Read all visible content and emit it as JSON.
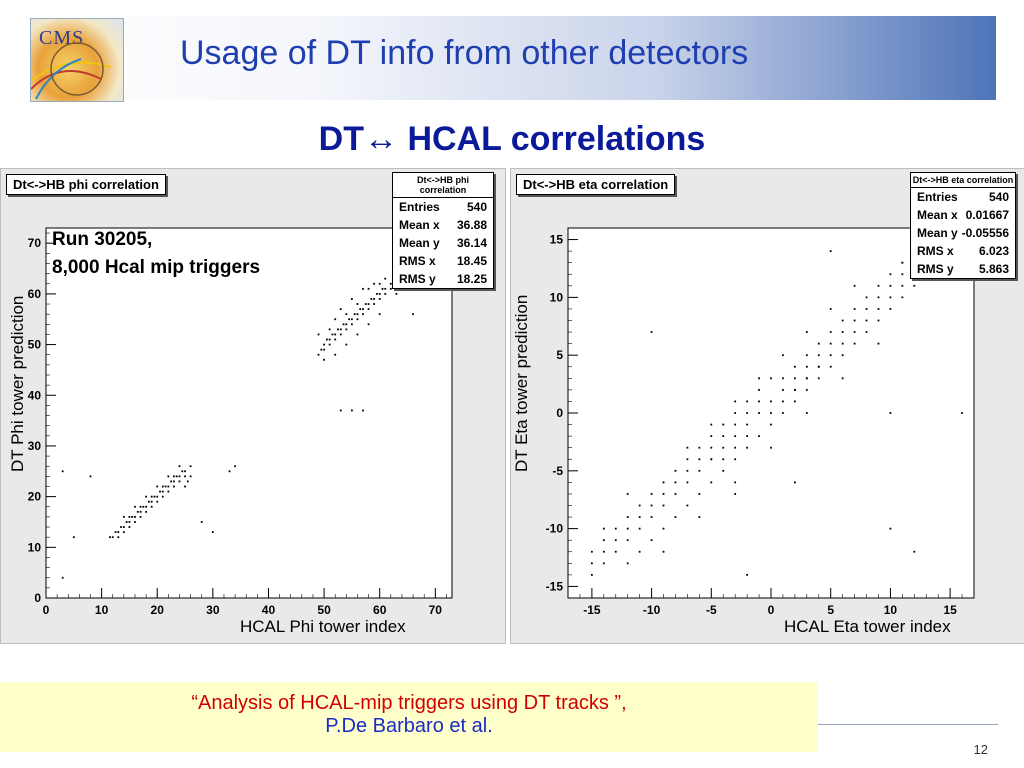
{
  "slide": {
    "title": "Usage of DT  info  from other detectors",
    "subtitle": "DT↔ HCAL correlations",
    "page_number": "12",
    "logo_text": "CMS"
  },
  "annotation": {
    "line1": "Run 30205,",
    "line2": "8,000 Hcal mip triggers"
  },
  "quote": {
    "line1": "“Analysis of HCAL-mip triggers using DT tracks ”,",
    "line2": "P.De Barbaro et al."
  },
  "colors": {
    "title": "#1f3fb0",
    "subtitle": "#0b1a99",
    "quote_red": "#d00000",
    "quote_blue": "#1a2cc8",
    "quote_bg": "#ffffcc"
  },
  "chart_data": [
    {
      "type": "scatter",
      "title": "Dt<->HB phi correlation",
      "xlabel": "HCAL Phi tower  index",
      "ylabel": "DT Phi tower  prediction",
      "xlim": [
        0,
        73
      ],
      "ylim": [
        0,
        73
      ],
      "xticks": [
        0,
        10,
        20,
        30,
        40,
        50,
        60,
        70
      ],
      "yticks": [
        0,
        10,
        20,
        30,
        40,
        50,
        60,
        70
      ],
      "stats_title": "Dt<->HB phi correlation",
      "stats": [
        {
          "label": "Entries",
          "value": "540"
        },
        {
          "label": "Mean x",
          "value": "36.88"
        },
        {
          "label": "Mean y",
          "value": "36.14"
        },
        {
          "label": "RMS x",
          "value": "18.45"
        },
        {
          "label": "RMS y",
          "value": "18.25"
        }
      ],
      "points": [
        [
          12,
          12
        ],
        [
          12.5,
          13
        ],
        [
          13,
          13
        ],
        [
          13.5,
          14
        ],
        [
          14,
          14
        ],
        [
          14,
          13
        ],
        [
          14.5,
          15
        ],
        [
          15,
          15
        ],
        [
          15.5,
          16
        ],
        [
          16,
          16
        ],
        [
          16,
          15
        ],
        [
          16.5,
          17
        ],
        [
          17,
          17
        ],
        [
          17.5,
          18
        ],
        [
          18,
          18
        ],
        [
          18,
          17
        ],
        [
          18.5,
          19
        ],
        [
          19,
          19
        ],
        [
          19.5,
          20
        ],
        [
          20,
          20
        ],
        [
          20,
          19
        ],
        [
          20.5,
          21
        ],
        [
          21,
          21
        ],
        [
          21.5,
          22
        ],
        [
          22,
          22
        ],
        [
          22,
          21
        ],
        [
          22.5,
          23
        ],
        [
          23,
          23
        ],
        [
          23.5,
          24
        ],
        [
          24,
          24
        ],
        [
          24,
          23
        ],
        [
          24.5,
          25
        ],
        [
          25,
          25
        ],
        [
          25.5,
          23
        ],
        [
          26,
          24
        ],
        [
          13,
          12
        ],
        [
          15,
          14
        ],
        [
          17,
          16
        ],
        [
          19,
          18
        ],
        [
          21,
          20
        ],
        [
          23,
          22
        ],
        [
          25,
          24
        ],
        [
          15,
          16
        ],
        [
          17,
          18
        ],
        [
          19,
          20
        ],
        [
          21,
          22
        ],
        [
          23,
          24
        ],
        [
          14,
          16
        ],
        [
          16,
          18
        ],
        [
          18,
          20
        ],
        [
          20,
          22
        ],
        [
          22,
          24
        ],
        [
          24,
          26
        ],
        [
          11.5,
          12
        ],
        [
          25,
          22
        ],
        [
          26,
          26
        ],
        [
          33,
          25
        ],
        [
          34,
          26
        ],
        [
          28,
          15
        ],
        [
          3,
          4
        ],
        [
          3,
          25
        ],
        [
          8,
          24
        ],
        [
          30,
          13
        ],
        [
          5,
          12
        ],
        [
          49,
          48
        ],
        [
          49.5,
          49
        ],
        [
          50,
          50
        ],
        [
          50,
          49
        ],
        [
          50.5,
          51
        ],
        [
          51,
          51
        ],
        [
          51,
          50
        ],
        [
          51.5,
          52
        ],
        [
          52,
          52
        ],
        [
          52,
          51
        ],
        [
          52.5,
          53
        ],
        [
          53,
          53
        ],
        [
          53,
          52
        ],
        [
          53.5,
          54
        ],
        [
          54,
          54
        ],
        [
          54,
          53
        ],
        [
          54.5,
          55
        ],
        [
          55,
          55
        ],
        [
          55,
          54
        ],
        [
          55.5,
          56
        ],
        [
          56,
          56
        ],
        [
          56,
          55
        ],
        [
          56.5,
          57
        ],
        [
          57,
          57
        ],
        [
          57,
          56
        ],
        [
          57.5,
          58
        ],
        [
          58,
          58
        ],
        [
          58,
          57
        ],
        [
          58.5,
          59
        ],
        [
          59,
          59
        ],
        [
          59,
          58
        ],
        [
          59.5,
          60
        ],
        [
          60,
          60
        ],
        [
          60,
          59
        ],
        [
          60.5,
          61
        ],
        [
          61,
          61
        ],
        [
          61,
          60
        ],
        [
          62,
          61
        ],
        [
          62,
          62
        ],
        [
          63,
          62
        ],
        [
          64,
          63
        ],
        [
          64,
          61
        ],
        [
          50,
          47
        ],
        [
          52,
          48
        ],
        [
          54,
          50
        ],
        [
          56,
          52
        ],
        [
          58,
          54
        ],
        [
          60,
          56
        ],
        [
          53,
          57
        ],
        [
          55,
          59
        ],
        [
          57,
          61
        ],
        [
          59,
          62
        ],
        [
          61,
          63
        ],
        [
          60,
          62
        ],
        [
          58,
          61
        ],
        [
          56,
          58
        ],
        [
          54,
          56
        ],
        [
          52,
          55
        ],
        [
          51,
          53
        ],
        [
          53,
          37
        ],
        [
          55,
          37
        ],
        [
          57,
          37
        ],
        [
          66,
          56
        ],
        [
          49,
          52
        ],
        [
          63,
          60
        ]
      ]
    },
    {
      "type": "scatter",
      "title": "Dt<->HB eta correlation",
      "xlabel": "HCAL Eta tower  index",
      "ylabel": "DT Eta tower  prediction",
      "xlim": [
        -17,
        17
      ],
      "ylim": [
        -16,
        16
      ],
      "xticks": [
        -15,
        -10,
        -5,
        0,
        5,
        10,
        15
      ],
      "yticks": [
        -15,
        -10,
        -5,
        0,
        5,
        10,
        15
      ],
      "stats_title": "Dt<->HB eta correlation",
      "stats": [
        {
          "label": "Entries",
          "value": "540"
        },
        {
          "label": "Mean x",
          "value": "0.01667"
        },
        {
          "label": "Mean y",
          "value": "-0.05556"
        },
        {
          "label": "RMS x",
          "value": "6.023"
        },
        {
          "label": "RMS y",
          "value": "5.863"
        }
      ],
      "points": [
        [
          -15,
          -14
        ],
        [
          -15,
          -13
        ],
        [
          -14,
          -13
        ],
        [
          -14,
          -12
        ],
        [
          -13,
          -12
        ],
        [
          -13,
          -11
        ],
        [
          -12,
          -11
        ],
        [
          -12,
          -10
        ],
        [
          -11,
          -10
        ],
        [
          -11,
          -9
        ],
        [
          -10,
          -9
        ],
        [
          -10,
          -8
        ],
        [
          -9,
          -8
        ],
        [
          -9,
          -7
        ],
        [
          -8,
          -7
        ],
        [
          -8,
          -6
        ],
        [
          -7,
          -6
        ],
        [
          -7,
          -5
        ],
        [
          -6,
          -5
        ],
        [
          -6,
          -4
        ],
        [
          -5,
          -4
        ],
        [
          -5,
          -3
        ],
        [
          -4,
          -3
        ],
        [
          -4,
          -2
        ],
        [
          -3,
          -2
        ],
        [
          -3,
          -1
        ],
        [
          -2,
          -1
        ],
        [
          -2,
          0
        ],
        [
          -1,
          0
        ],
        [
          -1,
          1
        ],
        [
          0,
          1
        ],
        [
          0,
          0
        ],
        [
          1,
          1
        ],
        [
          1,
          2
        ],
        [
          2,
          2
        ],
        [
          2,
          3
        ],
        [
          3,
          3
        ],
        [
          3,
          4
        ],
        [
          4,
          4
        ],
        [
          4,
          5
        ],
        [
          5,
          5
        ],
        [
          5,
          6
        ],
        [
          6,
          6
        ],
        [
          6,
          7
        ],
        [
          7,
          7
        ],
        [
          7,
          8
        ],
        [
          8,
          8
        ],
        [
          8,
          9
        ],
        [
          9,
          9
        ],
        [
          9,
          10
        ],
        [
          10,
          10
        ],
        [
          10,
          11
        ],
        [
          11,
          11
        ],
        [
          11,
          12
        ],
        [
          12,
          12
        ],
        [
          12,
          13
        ],
        [
          13,
          13
        ],
        [
          14,
          14
        ],
        [
          15,
          14
        ],
        [
          -14,
          -11
        ],
        [
          -13,
          -10
        ],
        [
          -12,
          -9
        ],
        [
          -11,
          -8
        ],
        [
          -10,
          -7
        ],
        [
          -9,
          -6
        ],
        [
          -8,
          -5
        ],
        [
          -7,
          -4
        ],
        [
          -6,
          -3
        ],
        [
          -5,
          -2
        ],
        [
          -4,
          -1
        ],
        [
          -3,
          0
        ],
        [
          -2,
          1
        ],
        [
          -1,
          2
        ],
        [
          0,
          3
        ],
        [
          1,
          3
        ],
        [
          2,
          4
        ],
        [
          3,
          5
        ],
        [
          4,
          6
        ],
        [
          5,
          7
        ],
        [
          6,
          8
        ],
        [
          7,
          9
        ],
        [
          8,
          10
        ],
        [
          9,
          11
        ],
        [
          10,
          12
        ],
        [
          11,
          13
        ],
        [
          -12,
          -13
        ],
        [
          -11,
          -12
        ],
        [
          -10,
          -11
        ],
        [
          -9,
          -10
        ],
        [
          -8,
          -9
        ],
        [
          -7,
          -8
        ],
        [
          -6,
          -7
        ],
        [
          -5,
          -6
        ],
        [
          -4,
          -5
        ],
        [
          -3,
          -4
        ],
        [
          -2,
          -3
        ],
        [
          -1,
          -2
        ],
        [
          0,
          -1
        ],
        [
          1,
          0
        ],
        [
          2,
          1
        ],
        [
          3,
          2
        ],
        [
          4,
          3
        ],
        [
          5,
          4
        ],
        [
          6,
          5
        ],
        [
          7,
          6
        ],
        [
          8,
          7
        ],
        [
          9,
          8
        ],
        [
          10,
          9
        ],
        [
          11,
          10
        ],
        [
          12,
          11
        ],
        [
          -7,
          -3
        ],
        [
          -5,
          -1
        ],
        [
          -3,
          1
        ],
        [
          -1,
          3
        ],
        [
          1,
          5
        ],
        [
          3,
          7
        ],
        [
          5,
          9
        ],
        [
          7,
          11
        ],
        [
          -9,
          -12
        ],
        [
          -6,
          -9
        ],
        [
          -3,
          -6
        ],
        [
          0,
          -3
        ],
        [
          3,
          0
        ],
        [
          6,
          3
        ],
        [
          9,
          6
        ],
        [
          -5,
          -4
        ],
        [
          -4,
          -4
        ],
        [
          -3,
          -3
        ],
        [
          -2,
          -2
        ],
        [
          2,
          2
        ],
        [
          3,
          3
        ],
        [
          4,
          4
        ],
        [
          -14,
          -10
        ],
        [
          -15,
          -12
        ],
        [
          5,
          14
        ],
        [
          -2,
          -14
        ],
        [
          -10,
          7
        ],
        [
          10,
          0
        ],
        [
          10,
          -10
        ],
        [
          12,
          -12
        ],
        [
          16,
          0
        ],
        [
          15,
          12
        ],
        [
          14,
          12
        ],
        [
          11,
          13
        ],
        [
          -3,
          -7
        ],
        [
          2,
          -6
        ],
        [
          -12,
          -7
        ]
      ]
    }
  ]
}
